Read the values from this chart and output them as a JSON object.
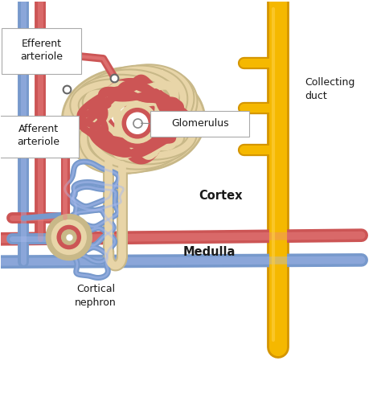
{
  "bg_color": "#ffffff",
  "red_color": "#cc5555",
  "blue_color": "#7799cc",
  "beige_color": "#e8d5a8",
  "beige_dark": "#c8b888",
  "yellow_color": "#f5b800",
  "yellow_dark": "#d49500",
  "yellow_light": "#ffd044",
  "text_color": "#1a1a1a",
  "labels": {
    "efferent": "Efferent\narteriole",
    "afferent": "Afferent\narteriole",
    "glomerulus": "Glomerulus",
    "collecting_duct": "Collecting\nduct",
    "cortex": "Cortex",
    "medulla": "Medulla",
    "cortical_nephron": "Cortical\nnephron"
  },
  "figsize": [
    4.74,
    5.05
  ],
  "dpi": 100
}
